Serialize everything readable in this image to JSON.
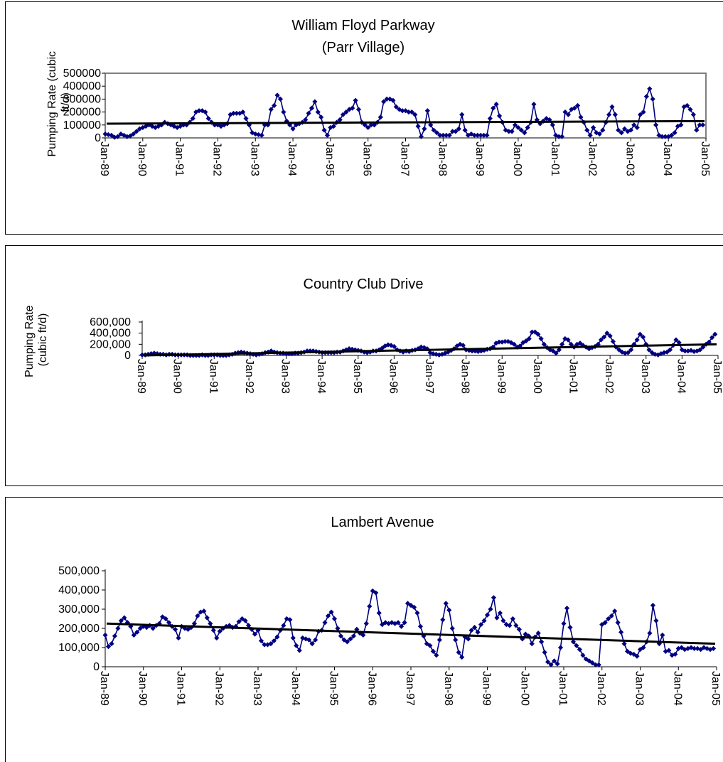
{
  "chart_data": [
    {
      "type": "line",
      "title": "William Floyd Parkway",
      "subtitle": "(Parr Village)",
      "ylabel_lines": [
        "Pumping Rate (cubic",
        "ft/d)"
      ],
      "ylim": [
        0,
        500000
      ],
      "yticks": [
        0,
        100000,
        200000,
        300000,
        400000,
        500000
      ],
      "ytick_labels": [
        "0",
        "100000",
        "200000",
        "300000",
        "400000",
        "500000"
      ],
      "x_start": "Jan-89",
      "x_ticks": [
        "Jan-89",
        "Jan-90",
        "Jan-91",
        "Jan-92",
        "Jan-93",
        "Jan-94",
        "Jan-95",
        "Jan-96",
        "Jan-97",
        "Jan-98",
        "Jan-99",
        "Jan-00",
        "Jan-01",
        "Jan-02",
        "Jan-03",
        "Jan-04",
        "Jan-05"
      ],
      "series_color": "#000080",
      "trend_color": "#000000",
      "trend": [
        110000,
        130000
      ],
      "y_yearly": [
        [
          30000,
          25000,
          20000,
          5000,
          10000,
          30000,
          20000,
          10000,
          15000,
          30000,
          50000,
          70000
        ],
        [
          80000,
          90000,
          100000,
          90000,
          80000,
          90000,
          100000,
          120000,
          110000,
          100000,
          90000,
          80000
        ],
        [
          90000,
          100000,
          100000,
          120000,
          150000,
          200000,
          210000,
          210000,
          200000,
          150000,
          120000,
          100000
        ],
        [
          100000,
          90000,
          100000,
          110000,
          180000,
          190000,
          190000,
          190000,
          200000,
          150000,
          100000,
          40000
        ],
        [
          30000,
          25000,
          20000,
          100000,
          100000,
          220000,
          250000,
          330000,
          300000,
          200000,
          130000,
          100000
        ],
        [
          70000,
          100000,
          110000,
          120000,
          140000,
          190000,
          230000,
          280000,
          200000,
          160000,
          60000,
          20000
        ],
        [
          80000,
          90000,
          120000,
          140000,
          180000,
          200000,
          220000,
          230000,
          290000,
          220000,
          120000,
          100000
        ],
        [
          80000,
          100000,
          100000,
          120000,
          160000,
          280000,
          300000,
          300000,
          290000,
          240000,
          220000,
          210000
        ],
        [
          210000,
          200000,
          200000,
          180000,
          90000,
          10000,
          70000,
          210000,
          100000,
          60000,
          40000,
          20000
        ],
        [
          20000,
          20000,
          20000,
          50000,
          50000,
          70000,
          180000,
          60000,
          20000,
          30000,
          20000,
          20000
        ],
        [
          20000,
          20000,
          20000,
          150000,
          230000,
          260000,
          170000,
          120000,
          60000,
          50000,
          50000,
          100000
        ],
        [
          80000,
          60000,
          40000,
          80000,
          120000,
          260000,
          140000,
          110000,
          130000,
          150000,
          140000,
          100000
        ],
        [
          20000,
          10000,
          10000,
          200000,
          180000,
          220000,
          230000,
          250000,
          160000,
          120000,
          60000,
          20000
        ],
        [
          80000,
          40000,
          30000,
          60000,
          120000,
          180000,
          240000,
          180000,
          60000,
          40000,
          70000,
          50000
        ],
        [
          60000,
          100000,
          80000,
          180000,
          200000,
          320000,
          380000,
          300000,
          100000,
          20000,
          10000,
          10000
        ],
        [
          10000,
          20000,
          40000,
          90000,
          100000,
          240000,
          250000,
          220000,
          180000,
          60000,
          100000,
          100000
        ]
      ]
    },
    {
      "type": "line",
      "title": "Country Club Drive",
      "ylabel_lines": [
        "Pumping Rate",
        "(cubic ft/d)"
      ],
      "ylim": [
        0,
        600000
      ],
      "yticks": [
        0,
        200000,
        400000,
        600000
      ],
      "ytick_labels": [
        "0",
        "200,000",
        "400,000",
        "600,000"
      ],
      "x_start": "Jan-89",
      "x_ticks": [
        "Jan-89",
        "Jan-90",
        "Jan-91",
        "Jan-92",
        "Jan-93",
        "Jan-94",
        "Jan-95",
        "Jan-96",
        "Jan-97",
        "Jan-98",
        "Jan-99",
        "Jan-00",
        "Jan-01",
        "Jan-02",
        "Jan-03",
        "Jan-04",
        "Jan-05"
      ],
      "series_color": "#000080",
      "trend_color": "#000000",
      "trend": [
        0,
        200000
      ],
      "y_yearly": [
        [
          10000,
          10000,
          20000,
          30000,
          40000,
          30000,
          20000,
          20000,
          10000,
          20000,
          20000,
          10000
        ],
        [
          10000,
          10000,
          10000,
          10000,
          0,
          0,
          0,
          0,
          10000,
          0,
          0,
          10000
        ],
        [
          10000,
          10000,
          0,
          0,
          0,
          10000,
          20000,
          40000,
          50000,
          60000,
          50000,
          40000
        ],
        [
          30000,
          20000,
          10000,
          20000,
          30000,
          50000,
          60000,
          80000,
          60000,
          50000,
          40000,
          40000
        ],
        [
          30000,
          30000,
          30000,
          40000,
          40000,
          50000,
          60000,
          80000,
          80000,
          80000,
          70000,
          60000
        ],
        [
          50000,
          50000,
          50000,
          50000,
          50000,
          60000,
          60000,
          80000,
          100000,
          120000,
          110000,
          100000
        ],
        [
          90000,
          80000,
          60000,
          50000,
          60000,
          80000,
          80000,
          100000,
          130000,
          170000,
          190000,
          180000
        ],
        [
          160000,
          100000,
          80000,
          60000,
          80000,
          70000,
          90000,
          100000,
          120000,
          150000,
          140000,
          120000
        ],
        [
          50000,
          30000,
          20000,
          10000,
          20000,
          40000,
          60000,
          90000,
          120000,
          170000,
          200000,
          180000
        ],
        [
          100000,
          90000,
          80000,
          80000,
          70000,
          80000,
          90000,
          110000,
          120000,
          150000,
          220000,
          240000
        ],
        [
          240000,
          250000,
          250000,
          230000,
          200000,
          150000,
          170000,
          230000,
          260000,
          300000,
          420000,
          420000
        ],
        [
          380000,
          300000,
          200000,
          140000,
          100000,
          80000,
          40000,
          100000,
          200000,
          300000,
          280000,
          200000
        ],
        [
          150000,
          200000,
          220000,
          180000,
          150000,
          120000,
          140000,
          160000,
          200000,
          280000,
          330000,
          400000
        ],
        [
          350000,
          250000,
          150000,
          100000,
          60000,
          40000,
          50000,
          100000,
          200000,
          280000,
          380000,
          330000
        ],
        [
          200000,
          100000,
          50000,
          20000,
          10000,
          30000,
          50000,
          60000,
          100000,
          180000,
          280000,
          230000
        ],
        [
          100000,
          80000,
          80000,
          90000,
          70000,
          80000,
          100000,
          150000,
          200000,
          240000,
          320000,
          380000
        ]
      ]
    },
    {
      "type": "line",
      "title": "Lambert Avenue",
      "ylim": [
        0,
        500000
      ],
      "yticks": [
        0,
        100000,
        200000,
        300000,
        400000,
        500000
      ],
      "ytick_labels": [
        "0",
        "100,000",
        "200,000",
        "300,000",
        "400,000",
        "500,000"
      ],
      "x_start": "Jan-89",
      "x_ticks": [
        "Jan-89",
        "Jan-90",
        "Jan-91",
        "Jan-92",
        "Jan-93",
        "Jan-94",
        "Jan-95",
        "Jan-96",
        "Jan-97",
        "Jan-98",
        "Jan-99",
        "Jan-00",
        "Jan-01",
        "Jan-02",
        "Jan-03",
        "Jan-04",
        "Jan-05"
      ],
      "series_color": "#000080",
      "trend_color": "#000000",
      "trend": [
        225000,
        120000
      ],
      "y_yearly": [
        [
          165000,
          105000,
          120000,
          160000,
          200000,
          240000,
          255000,
          230000,
          210000,
          165000,
          180000,
          200000
        ],
        [
          210000,
          205000,
          215000,
          200000,
          215000,
          225000,
          260000,
          250000,
          230000,
          210000,
          195000,
          150000
        ],
        [
          210000,
          200000,
          195000,
          205000,
          225000,
          265000,
          285000,
          290000,
          255000,
          225000,
          190000,
          150000
        ],
        [
          185000,
          200000,
          210000,
          215000,
          205000,
          210000,
          235000,
          250000,
          240000,
          215000,
          195000,
          170000
        ],
        [
          190000,
          135000,
          115000,
          115000,
          120000,
          135000,
          155000,
          190000,
          215000,
          250000,
          245000,
          150000
        ],
        [
          110000,
          85000,
          150000,
          145000,
          140000,
          120000,
          140000,
          185000,
          190000,
          230000,
          265000,
          285000
        ],
        [
          250000,
          200000,
          160000,
          140000,
          130000,
          145000,
          160000,
          195000,
          175000,
          165000,
          225000,
          315000
        ],
        [
          395000,
          385000,
          280000,
          220000,
          230000,
          225000,
          230000,
          225000,
          230000,
          210000,
          230000,
          330000
        ],
        [
          320000,
          310000,
          280000,
          210000,
          160000,
          120000,
          110000,
          80000,
          60000,
          140000,
          245000,
          330000
        ],
        [
          295000,
          200000,
          140000,
          75000,
          50000,
          155000,
          145000,
          190000,
          205000,
          180000,
          220000,
          240000
        ],
        [
          270000,
          300000,
          360000,
          255000,
          280000,
          240000,
          220000,
          215000,
          250000,
          215000,
          195000,
          145000
        ],
        [
          170000,
          160000,
          120000,
          155000,
          175000,
          130000,
          75000,
          25000,
          10000,
          30000,
          15000,
          100000
        ],
        [
          225000,
          305000,
          205000,
          130000,
          110000,
          90000,
          60000,
          40000,
          30000,
          20000,
          10000,
          10000
        ],
        [
          220000,
          230000,
          250000,
          265000,
          290000,
          230000,
          180000,
          120000,
          80000,
          70000,
          65000,
          55000
        ],
        [
          90000,
          100000,
          130000,
          175000,
          320000,
          240000,
          120000,
          165000,
          80000,
          85000,
          60000,
          65000
        ],
        [
          95000,
          100000,
          90000,
          95000,
          100000,
          95000,
          95000,
          90000,
          100000,
          95000,
          90000,
          95000
        ]
      ]
    }
  ]
}
